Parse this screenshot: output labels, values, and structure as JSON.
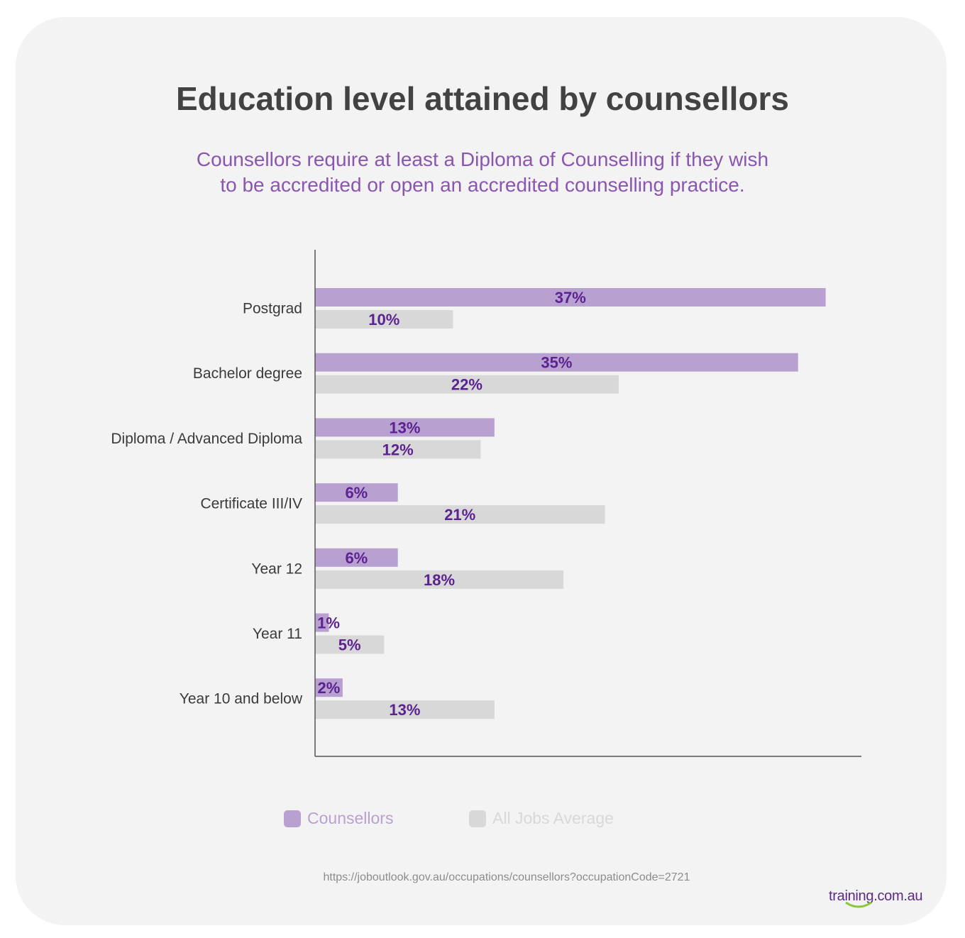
{
  "title": "Education level attained by counsellors",
  "subtitle_line1": "Counsellors require at least a Diploma of Counselling if they wish",
  "subtitle_line2": "to be accredited or open an accredited counselling practice.",
  "source": "https://joboutlook.gov.au/occupations/counsellors?occupationCode=2721",
  "logo": "training.com.au",
  "colors": {
    "counsellors": "#b8a1d1",
    "all_jobs": "#d8d8d8",
    "value_label": "#5b2290",
    "axis": "#555555"
  },
  "chart_data": {
    "type": "bar",
    "orientation": "horizontal",
    "categories": [
      "Postgrad",
      "Bachelor degree",
      "Diploma / Advanced Diploma",
      "Certificate III/IV",
      "Year 12",
      "Year 11",
      "Year 10 and below"
    ],
    "series": [
      {
        "name": "Counsellors",
        "values": [
          37,
          35,
          13,
          6,
          6,
          1,
          2
        ],
        "labels": [
          "37%",
          "35%",
          "13%",
          "6%",
          "6%",
          "1%",
          "2%"
        ]
      },
      {
        "name": "All Jobs Average",
        "values": [
          10,
          22,
          12,
          21,
          18,
          5,
          13
        ],
        "labels": [
          "10%",
          "22%",
          "12%",
          "21%",
          "18%",
          "5%",
          "13%"
        ]
      }
    ],
    "xlim": [
      0,
      40
    ],
    "grid": false,
    "legend_position": "bottom"
  }
}
